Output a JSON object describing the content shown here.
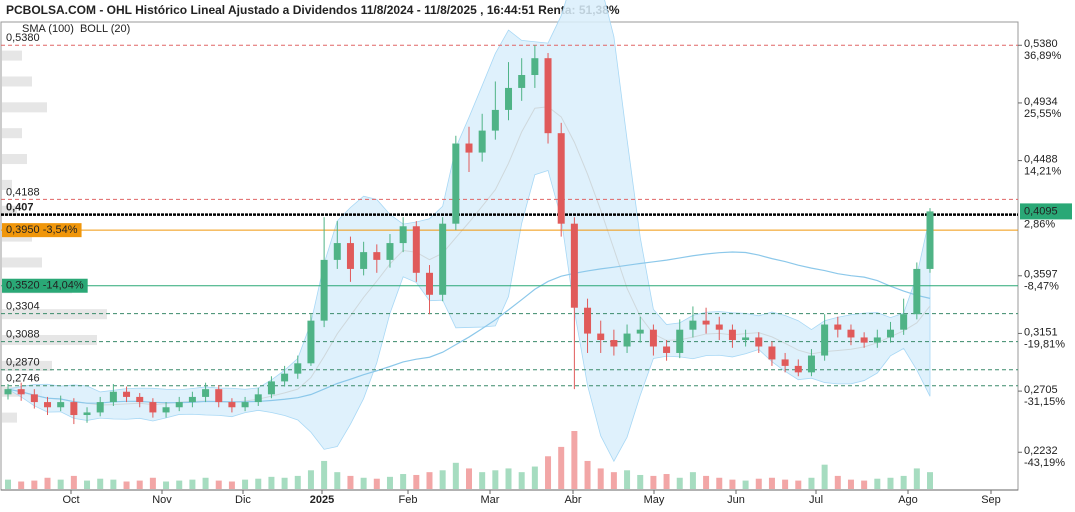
{
  "chart_data": {
    "type": "candlestick",
    "title": "PCBOLSA.COM - OHL Histórico Lineal Ajustado a Dividendos 11/8/2024 - 11/8/2025 , 16:44:51 Renta: 51,38%",
    "legend": [
      {
        "name": "SMA (100)",
        "color": "#8cc8ea"
      },
      {
        "name": "BOLL (20)",
        "color": "#cccccc"
      }
    ],
    "x_labels": [
      "Oct",
      "Nov",
      "Dic",
      "2025",
      "Feb",
      "Mar",
      "Abr",
      "May",
      "Jun",
      "Jul",
      "Ago",
      "Sep"
    ],
    "ylim": [
      0.194,
      0.556
    ],
    "yticks": [
      {
        "value": 0.538,
        "label": "0,5380",
        "pct": "36,89%"
      },
      {
        "value": 0.4934,
        "label": "0,4934",
        "pct": "25,55%"
      },
      {
        "value": 0.4488,
        "label": "0,4488",
        "pct": "14,21%"
      },
      {
        "value": 0.3597,
        "label": "0,3597",
        "pct": "-8,47%"
      },
      {
        "value": 0.3151,
        "label": "0,3151",
        "pct": "-19,81%"
      },
      {
        "value": 0.2705,
        "label": "0,2705",
        "pct": "-31,15%"
      },
      {
        "value": 0.2232,
        "label": "0,2232",
        "pct": "-43,19%"
      }
    ],
    "last_price": {
      "value": 0.4095,
      "label": "0,4095",
      "pct": "2,86%"
    },
    "levels": [
      {
        "value": 0.538,
        "label": "0,5380",
        "color": "#e06666",
        "style": "dashed"
      },
      {
        "value": 0.4188,
        "label": "0,4188",
        "color": "#e06666",
        "style": "dashed"
      },
      {
        "value": 0.407,
        "label": "0,407",
        "color": "#000000",
        "style": "bold"
      },
      {
        "value": 0.395,
        "label": "0,3950 -3,54%",
        "color": "#f0960a",
        "style": "box"
      },
      {
        "value": 0.352,
        "label": "0,3520 -14,04%",
        "color": "#2aa876",
        "style": "box"
      },
      {
        "value": 0.3304,
        "label": "0,3304",
        "color": "#3a8a6a",
        "style": "dashed"
      },
      {
        "value": 0.3088,
        "label": "0,3088",
        "color": "#3a8a6a",
        "style": "dashed"
      },
      {
        "value": 0.287,
        "label": "0,2870",
        "color": "#3a8a6a",
        "style": "dashed"
      },
      {
        "value": 0.2746,
        "label": "0,2746",
        "color": "#3a8a6a",
        "style": "dashed"
      }
    ],
    "up_color": "#4fb386",
    "down_color": "#e05a5a",
    "open": [
      0.268,
      0.272,
      0.268,
      0.262,
      0.258,
      0.262,
      0.252,
      0.254,
      0.262,
      0.27,
      0.266,
      0.262,
      0.254,
      0.258,
      0.262,
      0.266,
      0.272,
      0.262,
      0.258,
      0.262,
      0.268,
      0.278,
      0.284,
      0.292,
      0.325,
      0.372,
      0.385,
      0.365,
      0.378,
      0.372,
      0.385,
      0.398,
      0.362,
      0.345,
      0.4,
      0.462,
      0.455,
      0.472,
      0.488,
      0.505,
      0.515,
      0.528,
      0.47,
      0.4,
      0.335,
      0.315,
      0.31,
      0.305,
      0.315,
      0.318,
      0.305,
      0.3,
      0.318,
      0.325,
      0.322,
      0.318,
      0.31,
      0.312,
      0.305,
      0.295,
      0.29,
      0.285,
      0.298,
      0.322,
      0.318,
      0.312,
      0.308,
      0.312,
      0.318,
      0.33,
      0.365
    ],
    "high": [
      0.276,
      0.277,
      0.272,
      0.266,
      0.267,
      0.265,
      0.258,
      0.266,
      0.276,
      0.274,
      0.269,
      0.265,
      0.262,
      0.266,
      0.27,
      0.277,
      0.275,
      0.265,
      0.266,
      0.273,
      0.282,
      0.29,
      0.298,
      0.33,
      0.405,
      0.402,
      0.39,
      0.386,
      0.384,
      0.392,
      0.405,
      0.402,
      0.368,
      0.405,
      0.468,
      0.475,
      0.485,
      0.51,
      0.525,
      0.528,
      0.538,
      0.532,
      0.478,
      0.405,
      0.342,
      0.325,
      0.318,
      0.322,
      0.328,
      0.322,
      0.31,
      0.326,
      0.336,
      0.335,
      0.328,
      0.322,
      0.318,
      0.316,
      0.309,
      0.3,
      0.295,
      0.303,
      0.33,
      0.328,
      0.322,
      0.316,
      0.318,
      0.324,
      0.342,
      0.37,
      0.412
    ],
    "low": [
      0.264,
      0.263,
      0.257,
      0.252,
      0.255,
      0.245,
      0.246,
      0.251,
      0.259,
      0.262,
      0.258,
      0.25,
      0.25,
      0.255,
      0.258,
      0.262,
      0.258,
      0.254,
      0.255,
      0.259,
      0.265,
      0.274,
      0.28,
      0.29,
      0.32,
      0.365,
      0.355,
      0.36,
      0.362,
      0.366,
      0.378,
      0.355,
      0.33,
      0.34,
      0.395,
      0.44,
      0.448,
      0.465,
      0.48,
      0.495,
      0.505,
      0.462,
      0.39,
      0.272,
      0.3,
      0.3,
      0.298,
      0.3,
      0.308,
      0.298,
      0.294,
      0.296,
      0.312,
      0.315,
      0.31,
      0.304,
      0.305,
      0.3,
      0.29,
      0.285,
      0.282,
      0.282,
      0.294,
      0.312,
      0.306,
      0.304,
      0.304,
      0.308,
      0.314,
      0.326,
      0.362
    ],
    "close": [
      0.272,
      0.268,
      0.262,
      0.258,
      0.262,
      0.252,
      0.254,
      0.262,
      0.27,
      0.266,
      0.262,
      0.254,
      0.258,
      0.262,
      0.266,
      0.272,
      0.262,
      0.258,
      0.262,
      0.268,
      0.278,
      0.284,
      0.292,
      0.325,
      0.372,
      0.385,
      0.365,
      0.378,
      0.372,
      0.385,
      0.398,
      0.362,
      0.345,
      0.4,
      0.462,
      0.455,
      0.472,
      0.488,
      0.505,
      0.515,
      0.528,
      0.47,
      0.4,
      0.335,
      0.315,
      0.31,
      0.305,
      0.315,
      0.318,
      0.305,
      0.3,
      0.318,
      0.325,
      0.322,
      0.318,
      0.31,
      0.312,
      0.305,
      0.295,
      0.29,
      0.285,
      0.298,
      0.322,
      0.318,
      0.312,
      0.308,
      0.312,
      0.318,
      0.33,
      0.365,
      0.4095
    ],
    "volume": [
      10,
      8,
      9,
      12,
      10,
      14,
      9,
      11,
      10,
      8,
      9,
      12,
      8,
      9,
      10,
      12,
      9,
      8,
      10,
      11,
      13,
      12,
      14,
      20,
      30,
      18,
      14,
      12,
      11,
      13,
      16,
      15,
      18,
      20,
      28,
      22,
      18,
      20,
      22,
      18,
      24,
      35,
      45,
      62,
      30,
      22,
      18,
      20,
      15,
      14,
      16,
      12,
      18,
      14,
      12,
      10,
      9,
      11,
      12,
      10,
      9,
      12,
      26,
      14,
      10,
      9,
      11,
      12,
      14,
      22,
      18
    ],
    "volume_profile": {
      "levels": [
        0.53,
        0.51,
        0.49,
        0.47,
        0.45,
        0.43,
        0.41,
        0.39,
        0.37,
        0.35,
        0.33,
        0.31,
        0.29,
        0.27,
        0.25
      ],
      "values": [
        20,
        30,
        45,
        20,
        25,
        10,
        15,
        30,
        40,
        70,
        105,
        95,
        50,
        40,
        15
      ]
    }
  }
}
